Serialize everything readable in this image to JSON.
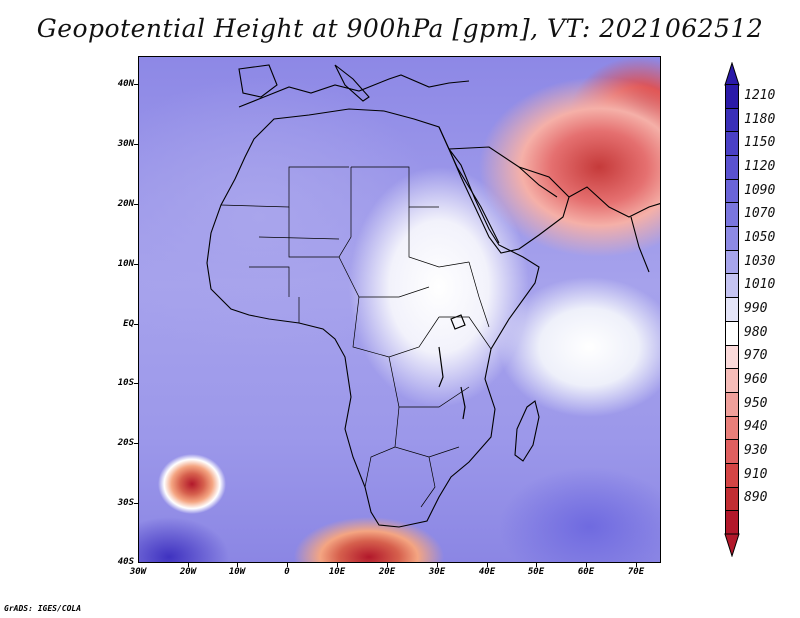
{
  "title": "Geopotential Height at 900hPa [gpm], VT: 2021062512",
  "credit": "GrADS: IGES/COLA",
  "map": {
    "lat_labels": [
      "40N",
      "30N",
      "20N",
      "10N",
      "EQ",
      "10S",
      "20S",
      "30S",
      "40S"
    ],
    "lon_labels": [
      "30W",
      "20W",
      "10W",
      "0",
      "10E",
      "20E",
      "30E",
      "40E",
      "50E",
      "60E",
      "70E"
    ]
  },
  "colorbar": {
    "levels": [
      "1210",
      "1180",
      "1150",
      "1120",
      "1090",
      "1070",
      "1050",
      "1030",
      "1010",
      "990",
      "980",
      "970",
      "960",
      "950",
      "940",
      "930",
      "910",
      "890"
    ],
    "colors": [
      "#2b1aa8",
      "#3a2fb8",
      "#4a40c6",
      "#5a52d0",
      "#6a64d8",
      "#7a76de",
      "#8d8ae4",
      "#a7a5ec",
      "#c5c4f2",
      "#e4e4f8",
      "#ffffff",
      "#fbdada",
      "#f6bdb9",
      "#f0a09b",
      "#e97f7a",
      "#e06060",
      "#d44545",
      "#c22d33",
      "#b2182b"
    ]
  }
}
